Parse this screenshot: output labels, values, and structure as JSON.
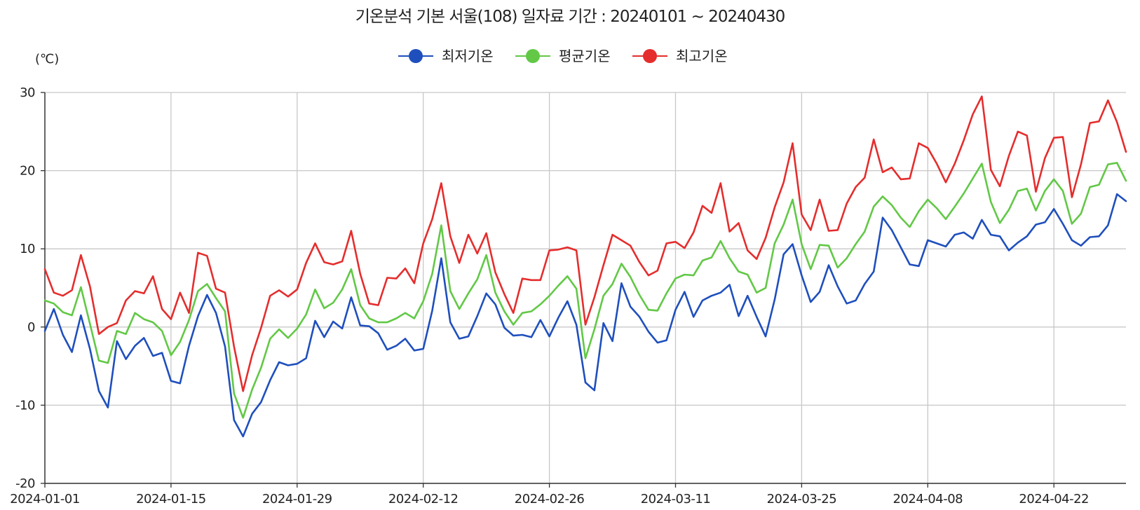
{
  "chart_data": {
    "type": "line",
    "title": "기온분석 기본 서울(108) 일자료 기간 : 20240101 ~ 20240430",
    "ylabel": "(℃)",
    "xlabel": "",
    "ylim": [
      -20,
      30
    ],
    "yticks": [
      30,
      20,
      10,
      0,
      -10,
      -20
    ],
    "xlim": [
      "2024-01-01",
      "2024-04-30"
    ],
    "xticks": [
      "2024-01-01",
      "2024-01-15",
      "2024-01-29",
      "2024-02-12",
      "2024-02-26",
      "2024-03-11",
      "2024-03-25",
      "2024-04-08",
      "2024-04-22"
    ],
    "grid": true,
    "legend_position": "top-center",
    "series": [
      {
        "name": "최저기온",
        "color": "#1f4fbd",
        "values": [
          -0.5,
          2.3,
          -1,
          -3.2,
          1.5,
          -2.8,
          -8.2,
          -10.3,
          -1.8,
          -4.1,
          -2.4,
          -1.4,
          -3.7,
          -3.3,
          -6.9,
          -7.2,
          -2.4,
          1.4,
          4.1,
          1.8,
          -2.5,
          -11.9,
          -14.0,
          -11.1,
          -9.6,
          -6.8,
          -4.5,
          -4.9,
          -4.7,
          -4.0,
          0.8,
          -1.3,
          0.7,
          -0.2,
          3.8,
          0.2,
          0.1,
          -0.8,
          -2.9,
          -2.4,
          -1.5,
          -3.0,
          -2.8,
          2.1,
          8.8,
          0.6,
          -1.5,
          -1.2,
          1.4,
          4.3,
          2.9,
          -0.1,
          -1.1,
          -1.0,
          -1.3,
          0.9,
          -1.2,
          1.2,
          3.3,
          0.3,
          -7.1,
          -8.1,
          0.5,
          -1.8,
          5.6,
          2.6,
          1.3,
          -0.6,
          -2.0,
          -1.7,
          2.2,
          4.5,
          1.3,
          3.4,
          4.0,
          4.4,
          5.4,
          1.4,
          4.0,
          1.3,
          -1.2,
          3.5,
          9.3,
          10.6,
          6.6,
          3.2,
          4.5,
          7.9,
          5.2,
          3.0,
          3.4,
          5.5,
          7.1,
          14.0,
          12.4,
          10.2,
          8.0,
          7.8,
          11.1,
          10.7,
          10.3,
          11.8,
          12.1,
          11.3,
          13.7,
          11.8,
          11.6,
          9.8,
          10.8,
          11.6,
          13.1,
          13.4,
          15.1,
          13.2,
          11.1,
          10.4,
          11.5,
          11.6,
          13.0,
          17.0,
          16.1
        ]
      },
      {
        "name": "평균기온",
        "color": "#62c846",
        "values": [
          3.4,
          3.0,
          1.9,
          1.5,
          5.1,
          0.4,
          -4.3,
          -4.6,
          -0.5,
          -0.9,
          1.8,
          1.0,
          0.6,
          -0.5,
          -3.6,
          -1.9,
          0.9,
          4.6,
          5.5,
          3.7,
          2.0,
          -8.5,
          -11.6,
          -8.0,
          -5.2,
          -1.5,
          -0.3,
          -1.4,
          -0.2,
          1.6,
          4.8,
          2.4,
          3.1,
          4.8,
          7.4,
          2.8,
          1.1,
          0.6,
          0.6,
          1.1,
          1.8,
          1.1,
          3.3,
          6.8,
          13.0,
          4.6,
          2.3,
          4.3,
          6.1,
          9.2,
          4.4,
          2.0,
          0.3,
          1.8,
          2.0,
          2.9,
          4.0,
          5.3,
          6.5,
          4.9,
          -4.0,
          -0.3,
          4.0,
          5.5,
          8.1,
          6.4,
          4.1,
          2.2,
          2.1,
          4.3,
          6.2,
          6.7,
          6.6,
          8.5,
          8.9,
          11.0,
          8.8,
          7.1,
          6.7,
          4.4,
          5.0,
          10.7,
          13.1,
          16.3,
          10.6,
          7.4,
          10.5,
          10.4,
          7.6,
          8.8,
          10.6,
          12.2,
          15.4,
          16.7,
          15.6,
          14.0,
          12.8,
          14.8,
          16.3,
          15.2,
          13.8,
          15.4,
          17.1,
          19.0,
          20.9,
          16.0,
          13.3,
          15.0,
          17.4,
          17.7,
          14.9,
          17.4,
          18.9,
          17.4,
          13.2,
          14.5,
          17.9,
          18.2,
          20.8,
          21.0,
          18.7
        ]
      },
      {
        "name": "최고기온",
        "color": "#e52d2d",
        "values": [
          7.4,
          4.4,
          4.0,
          4.7,
          9.2,
          5.2,
          -0.9,
          0.0,
          0.5,
          3.4,
          4.6,
          4.3,
          6.5,
          2.3,
          1.0,
          4.4,
          1.8,
          9.5,
          9.1,
          4.9,
          4.4,
          -2.5,
          -8.2,
          -3.6,
          -0.1,
          4.0,
          4.7,
          3.9,
          4.8,
          8.2,
          10.7,
          8.3,
          8.0,
          8.4,
          12.3,
          6.8,
          3.0,
          2.8,
          6.3,
          6.2,
          7.5,
          5.6,
          10.7,
          13.8,
          18.4,
          11.6,
          8.2,
          11.8,
          9.4,
          12.0,
          7.0,
          4.2,
          1.8,
          6.2,
          6.0,
          6.0,
          9.8,
          9.9,
          10.2,
          9.8,
          0.3,
          3.8,
          7.9,
          11.8,
          11.1,
          10.4,
          8.3,
          6.6,
          7.2,
          10.7,
          10.9,
          10.1,
          12.1,
          15.5,
          14.6,
          18.4,
          12.2,
          13.3,
          9.8,
          8.7,
          11.4,
          15.3,
          18.5,
          23.5,
          14.4,
          12.4,
          16.3,
          12.3,
          12.4,
          15.8,
          17.9,
          19.1,
          24.0,
          19.8,
          20.4,
          18.9,
          19.0,
          23.5,
          22.9,
          20.9,
          18.5,
          20.9,
          23.9,
          27.2,
          29.5,
          20.1,
          18.0,
          21.9,
          25.0,
          24.5,
          17.3,
          21.6,
          24.2,
          24.3,
          16.6,
          20.8,
          26.1,
          26.3,
          29.0,
          26.2,
          22.4
        ]
      }
    ]
  }
}
